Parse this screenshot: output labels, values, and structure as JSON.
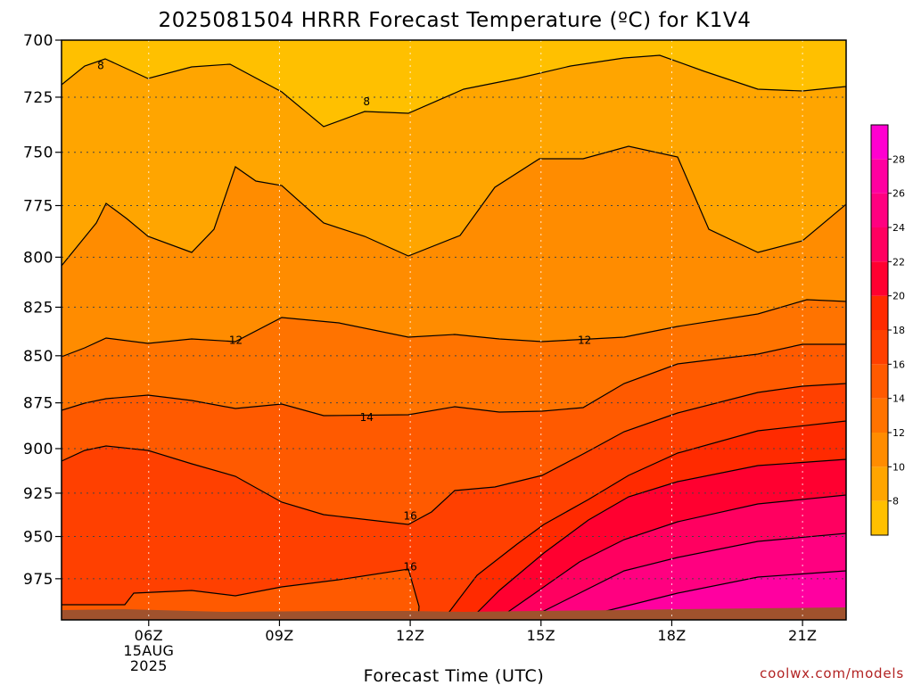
{
  "chart_data": {
    "type": "contour",
    "title": "2025081504 HRRR Forecast Temperature (ºC) for K1V4",
    "xlabel": "Forecast Time (UTC)",
    "x_ticks": [
      {
        "label": "06Z",
        "hour": 6,
        "date": "15AUG",
        "year": "2025"
      },
      {
        "label": "09Z",
        "hour": 9
      },
      {
        "label": "12Z",
        "hour": 12
      },
      {
        "label": "15Z",
        "hour": 15
      },
      {
        "label": "18Z",
        "hour": 18
      },
      {
        "label": "21Z",
        "hour": 21
      }
    ],
    "xlim": [
      4,
      22
    ],
    "y_ticks": [
      700,
      725,
      750,
      775,
      800,
      825,
      850,
      875,
      900,
      925,
      950,
      975
    ],
    "ylim": [
      700,
      1000
    ],
    "y_scale": "log-pressure, inverted",
    "grid": true,
    "colorbar": {
      "ticks": [
        8,
        10,
        12,
        14,
        16,
        18,
        20,
        22,
        24,
        26,
        28
      ],
      "levels": [
        6,
        8,
        10,
        12,
        14,
        16,
        18,
        20,
        22,
        24,
        26,
        28,
        30
      ],
      "colors": [
        "#ffc000",
        "#ffa500",
        "#ff8c00",
        "#ff7300",
        "#ff5a00",
        "#ff4000",
        "#ff2a00",
        "#ff0030",
        "#ff0060",
        "#ff0080",
        "#ff00a0",
        "#ff00d0"
      ]
    },
    "contour_labels": [
      {
        "text": "8",
        "hour": 4.9,
        "pressure": 711
      },
      {
        "text": "8",
        "hour": 11.0,
        "pressure": 727
      },
      {
        "text": "12",
        "hour": 8.0,
        "pressure": 842
      },
      {
        "text": "12",
        "hour": 16.0,
        "pressure": 842
      },
      {
        "text": "14",
        "hour": 11.0,
        "pressure": 883
      },
      {
        "text": "16",
        "hour": 12.0,
        "pressure": 938
      },
      {
        "text": "16",
        "hour": 12.0,
        "pressure": 968
      }
    ],
    "ground_color": "#a0522d",
    "credit": "coolwx.com/models"
  }
}
